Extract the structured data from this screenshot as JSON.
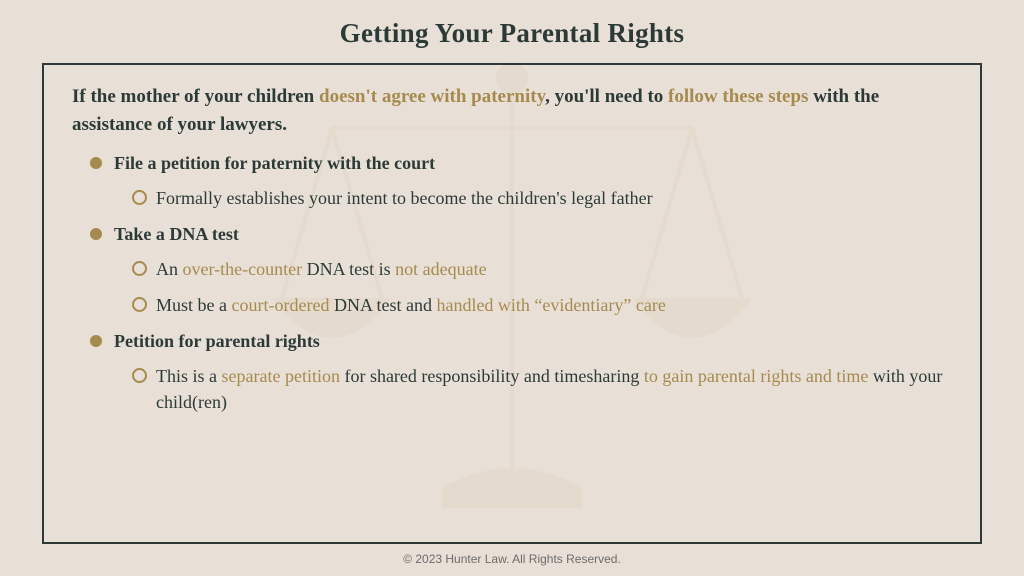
{
  "colors": {
    "bg": "#e8e0d6",
    "text_dark": "#2c3a37",
    "accent": "#a68a4e",
    "border": "#2c3a37",
    "footer": "#6b6b6b",
    "scales": "#c9b896"
  },
  "title": "Getting Your Parental Rights",
  "intro": {
    "p1": "If the mother of your children ",
    "hl1": "doesn't agree with paternity",
    "p2": ", you'll need to ",
    "hl2": "follow these steps",
    "p3": " with the assistance of your lawyers."
  },
  "items": [
    {
      "title": "File a petition for paternity with the court",
      "subs": [
        {
          "segments": [
            {
              "t": "Formally establishes your intent to become the children's legal father",
              "hl": false
            }
          ]
        }
      ]
    },
    {
      "title": "Take a DNA test",
      "subs": [
        {
          "segments": [
            {
              "t": "An ",
              "hl": false
            },
            {
              "t": "over-the-counter",
              "hl": true
            },
            {
              "t": " DNA test is ",
              "hl": false
            },
            {
              "t": "not adequate",
              "hl": true
            }
          ]
        },
        {
          "segments": [
            {
              "t": "Must be a ",
              "hl": false
            },
            {
              "t": "court-ordered",
              "hl": true
            },
            {
              "t": " DNA test and ",
              "hl": false
            },
            {
              "t": "handled with “evidentiary” care",
              "hl": true
            }
          ]
        }
      ]
    },
    {
      "title": "Petition for parental rights",
      "subs": [
        {
          "segments": [
            {
              "t": "This is a ",
              "hl": false
            },
            {
              "t": "separate petition",
              "hl": true
            },
            {
              "t": " for shared responsibility and timesharing ",
              "hl": false
            },
            {
              "t": "to gain parental rights and time",
              "hl": true
            },
            {
              "t": " with your child(ren)",
              "hl": false
            }
          ]
        }
      ]
    }
  ],
  "footer": "© 2023 Hunter Law. All Rights Reserved."
}
